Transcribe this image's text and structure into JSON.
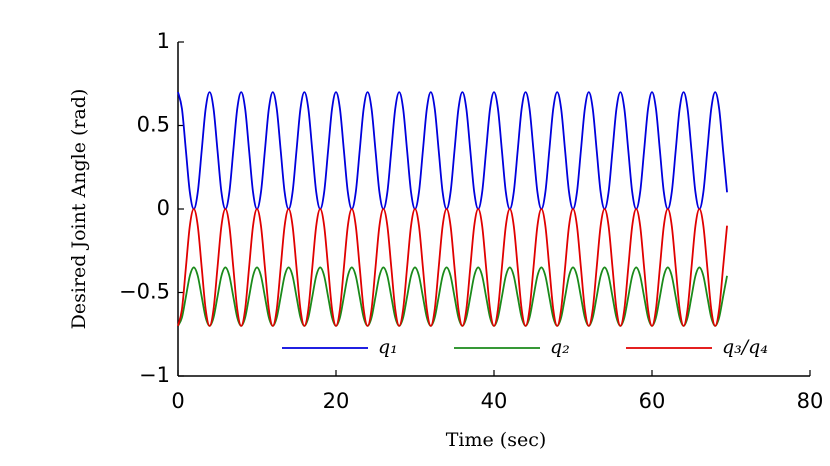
{
  "chart_data": {
    "type": "line",
    "xlabel": "Time (sec)",
    "ylabel": "Desired Joint Angle (rad)",
    "x": [
      0,
      0.5,
      1,
      1.5,
      2,
      2.5,
      3,
      3.5,
      4,
      4.5,
      5,
      5.5,
      6,
      6.5,
      7,
      7.5,
      8,
      8.5,
      9,
      9.5,
      10,
      10.5,
      11,
      11.5,
      12,
      12.5,
      13,
      13.5,
      14,
      14.5,
      15,
      15.5,
      16,
      16.5,
      17,
      17.5,
      18,
      18.5,
      19,
      19.5,
      20,
      20.5,
      21,
      21.5,
      22,
      22.5,
      23,
      23.5,
      24,
      24.5,
      25,
      25.5,
      26,
      26.5,
      27,
      27.5,
      28,
      28.5,
      29,
      29.5,
      30,
      30.5,
      31,
      31.5,
      32,
      32.5,
      33,
      33.5,
      34,
      34.5,
      35,
      35.5,
      36,
      36.5,
      37,
      37.5,
      38,
      38.5,
      39,
      39.5,
      40,
      40.5,
      41,
      41.5,
      42,
      42.5,
      43,
      43.5,
      44,
      44.5,
      45,
      45.5,
      46,
      46.5,
      47,
      47.5,
      48,
      48.5,
      49,
      49.5,
      50,
      50.5,
      51,
      51.5,
      52,
      52.5,
      53,
      53.5,
      54,
      54.5,
      55,
      55.5,
      56,
      56.5,
      57,
      57.5,
      58,
      58.5,
      59,
      59.5,
      60,
      60.5,
      61,
      61.5,
      62,
      62.5,
      63,
      63.5,
      64,
      64.5,
      65,
      65.5,
      66,
      66.5,
      67,
      67.5,
      68,
      68.5,
      69,
      69.5
    ],
    "series": [
      {
        "name": "q₁",
        "color": "#0000dd",
        "values": [
          0.7,
          0.6,
          0.35,
          0.1,
          0,
          0.1,
          0.35,
          0.6,
          0.7,
          0.6,
          0.35,
          0.1,
          0,
          0.1,
          0.35,
          0.6,
          0.7,
          0.6,
          0.35,
          0.1,
          0,
          0.1,
          0.35,
          0.6,
          0.7,
          0.6,
          0.35,
          0.1,
          0,
          0.1,
          0.35,
          0.6,
          0.7,
          0.6,
          0.35,
          0.1,
          0,
          0.1,
          0.35,
          0.6,
          0.7,
          0.6,
          0.35,
          0.1,
          0,
          0.1,
          0.35,
          0.6,
          0.7,
          0.6,
          0.35,
          0.1,
          0,
          0.1,
          0.35,
          0.6,
          0.7,
          0.6,
          0.35,
          0.1,
          0,
          0.1,
          0.35,
          0.6,
          0.7,
          0.6,
          0.35,
          0.1,
          0,
          0.1,
          0.35,
          0.6,
          0.7,
          0.6,
          0.35,
          0.1,
          0,
          0.1,
          0.35,
          0.6,
          0.7,
          0.6,
          0.35,
          0.1,
          0,
          0.1,
          0.35,
          0.6,
          0.7,
          0.6,
          0.35,
          0.1,
          0,
          0.1,
          0.35,
          0.6,
          0.7,
          0.6,
          0.35,
          0.1,
          0,
          0.1,
          0.35,
          0.6,
          0.7,
          0.6,
          0.35,
          0.1,
          0,
          0.1,
          0.35,
          0.6,
          0.7,
          0.6,
          0.35,
          0.1,
          0,
          0.1,
          0.35,
          0.6,
          0.7,
          0.6,
          0.35,
          0.1,
          0,
          0.1,
          0.35,
          0.6,
          0.7,
          0.6,
          0.35,
          0.1,
          0,
          0.1,
          0.35,
          0.6,
          0.7,
          0.6,
          0.35,
          0.1
        ]
      },
      {
        "name": "q₂",
        "color": "#1a8a1a",
        "values": [
          -0.7,
          -0.65,
          -0.525,
          -0.4,
          -0.35,
          -0.4,
          -0.525,
          -0.65,
          -0.7,
          -0.65,
          -0.525,
          -0.4,
          -0.35,
          -0.4,
          -0.525,
          -0.65,
          -0.7,
          -0.65,
          -0.525,
          -0.4,
          -0.35,
          -0.4,
          -0.525,
          -0.65,
          -0.7,
          -0.65,
          -0.525,
          -0.4,
          -0.35,
          -0.4,
          -0.525,
          -0.65,
          -0.7,
          -0.65,
          -0.525,
          -0.4,
          -0.35,
          -0.4,
          -0.525,
          -0.65,
          -0.7,
          -0.65,
          -0.525,
          -0.4,
          -0.35,
          -0.4,
          -0.525,
          -0.65,
          -0.7,
          -0.65,
          -0.525,
          -0.4,
          -0.35,
          -0.4,
          -0.525,
          -0.65,
          -0.7,
          -0.65,
          -0.525,
          -0.4,
          -0.35,
          -0.4,
          -0.525,
          -0.65,
          -0.7,
          -0.65,
          -0.525,
          -0.4,
          -0.35,
          -0.4,
          -0.525,
          -0.65,
          -0.7,
          -0.65,
          -0.525,
          -0.4,
          -0.35,
          -0.4,
          -0.525,
          -0.65,
          -0.7,
          -0.65,
          -0.525,
          -0.4,
          -0.35,
          -0.4,
          -0.525,
          -0.65,
          -0.7,
          -0.65,
          -0.525,
          -0.4,
          -0.35,
          -0.4,
          -0.525,
          -0.65,
          -0.7,
          -0.65,
          -0.525,
          -0.4,
          -0.35,
          -0.4,
          -0.525,
          -0.65,
          -0.7,
          -0.65,
          -0.525,
          -0.4,
          -0.35,
          -0.4,
          -0.525,
          -0.65,
          -0.7,
          -0.65,
          -0.525,
          -0.4,
          -0.35,
          -0.4,
          -0.525,
          -0.65,
          -0.7,
          -0.65,
          -0.525,
          -0.4,
          -0.35,
          -0.4,
          -0.525,
          -0.65,
          -0.7,
          -0.65,
          -0.525,
          -0.4,
          -0.35,
          -0.4,
          -0.525,
          -0.65,
          -0.7,
          -0.65,
          -0.525,
          -0.4
        ]
      },
      {
        "name": "q₃/q₄",
        "color": "#e00000",
        "values": [
          -0.7,
          -0.6,
          -0.35,
          -0.1,
          0,
          -0.1,
          -0.35,
          -0.6,
          -0.7,
          -0.6,
          -0.35,
          -0.1,
          0,
          -0.1,
          -0.35,
          -0.6,
          -0.7,
          -0.6,
          -0.35,
          -0.1,
          0,
          -0.1,
          -0.35,
          -0.6,
          -0.7,
          -0.6,
          -0.35,
          -0.1,
          0,
          -0.1,
          -0.35,
          -0.6,
          -0.7,
          -0.6,
          -0.35,
          -0.1,
          0,
          -0.1,
          -0.35,
          -0.6,
          -0.7,
          -0.6,
          -0.35,
          -0.1,
          0,
          -0.1,
          -0.35,
          -0.6,
          -0.7,
          -0.6,
          -0.35,
          -0.1,
          0,
          -0.1,
          -0.35,
          -0.6,
          -0.7,
          -0.6,
          -0.35,
          -0.1,
          0,
          -0.1,
          -0.35,
          -0.6,
          -0.7,
          -0.6,
          -0.35,
          -0.1,
          0,
          -0.1,
          -0.35,
          -0.6,
          -0.7,
          -0.6,
          -0.35,
          -0.1,
          0,
          -0.1,
          -0.35,
          -0.6,
          -0.7,
          -0.6,
          -0.35,
          -0.1,
          0,
          -0.1,
          -0.35,
          -0.6,
          -0.7,
          -0.6,
          -0.35,
          -0.1,
          0,
          -0.1,
          -0.35,
          -0.6,
          -0.7,
          -0.6,
          -0.35,
          -0.1,
          0,
          -0.1,
          -0.35,
          -0.6,
          -0.7,
          -0.6,
          -0.35,
          -0.1,
          0,
          -0.1,
          -0.35,
          -0.6,
          -0.7,
          -0.6,
          -0.35,
          -0.1,
          0,
          -0.1,
          -0.35,
          -0.6,
          -0.7,
          -0.6,
          -0.35,
          -0.1,
          0,
          -0.1,
          -0.35,
          -0.6,
          -0.7,
          -0.6,
          -0.35,
          -0.1,
          0,
          -0.1,
          -0.35,
          -0.6,
          -0.7,
          -0.6,
          -0.35,
          -0.1
        ]
      }
    ],
    "xlim": [
      0,
      80
    ],
    "xticks": [
      0,
      20,
      40,
      60,
      80
    ],
    "ylim": [
      -1,
      1
    ],
    "yticks": [
      {
        "value": -1,
        "label": "−1"
      },
      {
        "value": -0.5,
        "label": "−0.5"
      },
      0,
      0.5,
      1
    ],
    "grid": false,
    "legend": "lower center"
  }
}
